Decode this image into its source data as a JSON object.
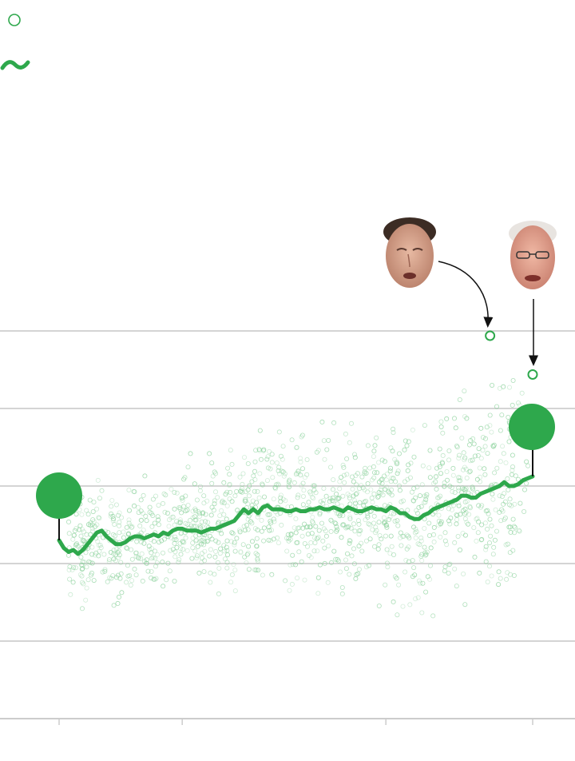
{
  "legend": {
    "items": [
      {
        "icon": "open-circle-marker-icon",
        "label": ""
      },
      {
        "icon": "squiggle-line-icon",
        "label": ""
      }
    ]
  },
  "colors": {
    "accent": "#2ea84c",
    "dot_faint": "#8fd39f",
    "gridline": "#d4d4d4",
    "axis": "#cccccc",
    "annotation": "#111111"
  },
  "annotations": [
    {
      "name": "senator-portrait-left",
      "icon": "face-photo-icon"
    },
    {
      "name": "senator-portrait-right",
      "icon": "face-photo-icon"
    }
  ],
  "chart_data": {
    "type": "scatter",
    "title": "",
    "xlabel": "",
    "ylabel": "",
    "grid": true,
    "xlim": [
      0,
      100
    ],
    "ylim": [
      0,
      100
    ],
    "y_gridlines": [
      100,
      80,
      60,
      40,
      20
    ],
    "x_ticks": [
      0,
      26,
      69,
      100
    ],
    "series": [
      {
        "kind": "average-line",
        "x": [
          0,
          1,
          2,
          3,
          4,
          5,
          6,
          7,
          8,
          9,
          10,
          11,
          12,
          13,
          14,
          15,
          16,
          17,
          18,
          19,
          20,
          21,
          22,
          23,
          24,
          25,
          26,
          27,
          28,
          29,
          30,
          31,
          32,
          33,
          34,
          35,
          36,
          37,
          38,
          39,
          40,
          41,
          42,
          43,
          44,
          45,
          46,
          47,
          48,
          49,
          50,
          51,
          52,
          53,
          54,
          55,
          56,
          57,
          58,
          59,
          60,
          61,
          62,
          63,
          64,
          65,
          66,
          67,
          68,
          69,
          70,
          71,
          72,
          73,
          74,
          75,
          76,
          77,
          78,
          79,
          80,
          81,
          82,
          83,
          84,
          85,
          86,
          87,
          88,
          89,
          90,
          91,
          92,
          93,
          94,
          95,
          96,
          97,
          98,
          99,
          100
        ],
        "y": [
          46,
          44,
          43,
          43.5,
          42.5,
          43.5,
          45,
          46.5,
          48,
          48.5,
          47,
          46,
          45,
          45,
          45.5,
          46.5,
          47,
          47,
          46.5,
          47,
          47.5,
          47,
          48,
          47.5,
          48.5,
          49,
          49,
          48.5,
          48.5,
          48.5,
          48,
          48.5,
          49,
          49,
          49.5,
          50,
          50.5,
          51,
          52.5,
          54,
          53,
          54,
          53,
          54.5,
          55,
          54,
          54,
          54,
          53.5,
          53.5,
          54,
          53.5,
          53.5,
          54,
          54,
          54.5,
          54,
          54,
          54.5,
          54,
          53.5,
          54.5,
          54,
          53.5,
          53.5,
          54,
          54.5,
          54,
          54,
          53.5,
          54.5,
          54,
          53,
          53,
          52,
          51.5,
          51.5,
          52.5,
          53,
          54,
          54.5,
          55,
          55.5,
          56,
          56.5,
          57.5,
          57.5,
          57,
          57,
          58,
          58.5,
          59,
          59.5,
          60,
          61,
          60,
          60,
          60.5,
          61.5,
          62,
          62.5
        ]
      }
    ],
    "start_marker": {
      "x": 0,
      "y": 46
    },
    "end_marker": {
      "x": 100,
      "y": 62.5
    },
    "outliers": [
      {
        "x": 91,
        "y": 100
      },
      {
        "x": 100,
        "y": 90
      }
    ]
  }
}
